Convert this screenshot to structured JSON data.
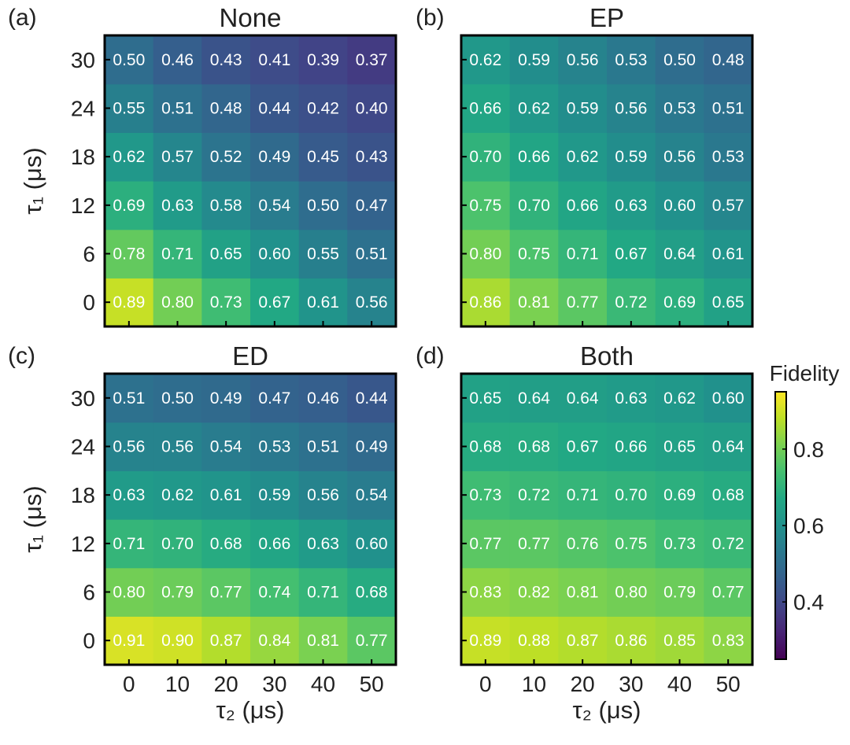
{
  "colorbar": {
    "label": "Fidelity",
    "ticks": [
      "0.4",
      "0.6",
      "0.8"
    ],
    "tick_values": [
      0.4,
      0.6,
      0.8
    ],
    "range": [
      0.25,
      0.95
    ]
  },
  "chart_data": [
    {
      "type": "heatmap",
      "panel": "(a)",
      "title": "None",
      "xlabel": "τ₂ (μs)",
      "ylabel": "τ₁ (μs)",
      "x": [
        0,
        10,
        20,
        30,
        40,
        50
      ],
      "y": [
        0,
        6,
        12,
        18,
        24,
        30
      ],
      "x_tick_labels": [
        "0",
        "10",
        "20",
        "30",
        "40",
        "50"
      ],
      "y_tick_labels": [
        "0",
        "6",
        "12",
        "18",
        "24",
        "30"
      ],
      "values": [
        [
          0.89,
          0.8,
          0.73,
          0.67,
          0.61,
          0.56
        ],
        [
          0.78,
          0.71,
          0.65,
          0.6,
          0.55,
          0.51
        ],
        [
          0.69,
          0.63,
          0.58,
          0.54,
          0.5,
          0.47
        ],
        [
          0.62,
          0.57,
          0.52,
          0.49,
          0.45,
          0.43
        ],
        [
          0.55,
          0.51,
          0.48,
          0.44,
          0.42,
          0.4
        ],
        [
          0.5,
          0.46,
          0.43,
          0.41,
          0.39,
          0.37
        ]
      ]
    },
    {
      "type": "heatmap",
      "panel": "(b)",
      "title": "EP",
      "xlabel": "τ₂ (μs)",
      "ylabel": "τ₁ (μs)",
      "x": [
        0,
        10,
        20,
        30,
        40,
        50
      ],
      "y": [
        0,
        6,
        12,
        18,
        24,
        30
      ],
      "x_tick_labels": [
        "0",
        "10",
        "20",
        "30",
        "40",
        "50"
      ],
      "y_tick_labels": [
        "0",
        "6",
        "12",
        "18",
        "24",
        "30"
      ],
      "values": [
        [
          0.86,
          0.81,
          0.77,
          0.72,
          0.69,
          0.65
        ],
        [
          0.8,
          0.75,
          0.71,
          0.67,
          0.64,
          0.61
        ],
        [
          0.75,
          0.7,
          0.66,
          0.63,
          0.6,
          0.57
        ],
        [
          0.7,
          0.66,
          0.62,
          0.59,
          0.56,
          0.53
        ],
        [
          0.66,
          0.62,
          0.59,
          0.56,
          0.53,
          0.51
        ],
        [
          0.62,
          0.59,
          0.56,
          0.53,
          0.5,
          0.48
        ]
      ]
    },
    {
      "type": "heatmap",
      "panel": "(c)",
      "title": "ED",
      "xlabel": "τ₂ (μs)",
      "ylabel": "τ₁ (μs)",
      "x": [
        0,
        10,
        20,
        30,
        40,
        50
      ],
      "y": [
        0,
        6,
        12,
        18,
        24,
        30
      ],
      "x_tick_labels": [
        "0",
        "10",
        "20",
        "30",
        "40",
        "50"
      ],
      "y_tick_labels": [
        "0",
        "6",
        "12",
        "18",
        "24",
        "30"
      ],
      "values": [
        [
          0.91,
          0.9,
          0.87,
          0.84,
          0.81,
          0.77
        ],
        [
          0.8,
          0.79,
          0.77,
          0.74,
          0.71,
          0.68
        ],
        [
          0.71,
          0.7,
          0.68,
          0.66,
          0.63,
          0.6
        ],
        [
          0.63,
          0.62,
          0.61,
          0.59,
          0.56,
          0.54
        ],
        [
          0.56,
          0.56,
          0.54,
          0.53,
          0.51,
          0.49
        ],
        [
          0.51,
          0.5,
          0.49,
          0.47,
          0.46,
          0.44
        ]
      ]
    },
    {
      "type": "heatmap",
      "panel": "(d)",
      "title": "Both",
      "xlabel": "τ₂ (μs)",
      "ylabel": "τ₁ (μs)",
      "x": [
        0,
        10,
        20,
        30,
        40,
        50
      ],
      "y": [
        0,
        6,
        12,
        18,
        24,
        30
      ],
      "x_tick_labels": [
        "0",
        "10",
        "20",
        "30",
        "40",
        "50"
      ],
      "y_tick_labels": [
        "0",
        "6",
        "12",
        "18",
        "24",
        "30"
      ],
      "values": [
        [
          0.89,
          0.88,
          0.87,
          0.86,
          0.85,
          0.83
        ],
        [
          0.83,
          0.82,
          0.81,
          0.8,
          0.79,
          0.77
        ],
        [
          0.77,
          0.77,
          0.76,
          0.75,
          0.73,
          0.72
        ],
        [
          0.73,
          0.72,
          0.71,
          0.7,
          0.69,
          0.68
        ],
        [
          0.68,
          0.68,
          0.67,
          0.66,
          0.65,
          0.64
        ],
        [
          0.65,
          0.64,
          0.64,
          0.63,
          0.62,
          0.6
        ]
      ]
    }
  ]
}
